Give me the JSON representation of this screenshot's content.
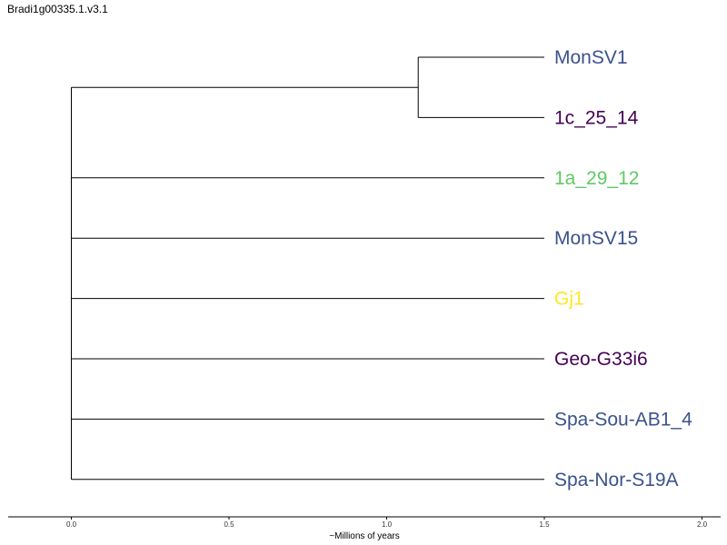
{
  "title": "Bradi1g00335.1.v3.1",
  "colors": {
    "blue": "#3b528b",
    "purple": "#440154",
    "green": "#5ec962",
    "yellow": "#fde725",
    "branch": "#000000"
  },
  "chart_data": {
    "type": "phylogenetic-tree",
    "xlabel": "~Millions of years",
    "xlim": [
      -0.2,
      2.06
    ],
    "ticks": [
      "0.0",
      "0.5",
      "1.0",
      "1.5",
      "2.0"
    ],
    "tick_values": [
      0.0,
      0.5,
      1.0,
      1.5,
      2.0
    ],
    "root_x": 0.0,
    "clades": [
      {
        "node_x": 1.1,
        "children": [
          0,
          1
        ]
      }
    ],
    "leaves": [
      {
        "label": "MonSV1",
        "color": "blue"
      },
      {
        "label": "1c_25_14",
        "color": "purple"
      },
      {
        "label": "1a_29_12",
        "color": "green"
      },
      {
        "label": "MonSV15",
        "color": "blue"
      },
      {
        "label": "Gj1",
        "color": "yellow"
      },
      {
        "label": "Geo-G33i6",
        "color": "purple"
      },
      {
        "label": "Spa-Sou-AB1_4",
        "color": "blue"
      },
      {
        "label": "Spa-Nor-S19A",
        "color": "blue"
      }
    ],
    "tip_x": 1.5
  }
}
